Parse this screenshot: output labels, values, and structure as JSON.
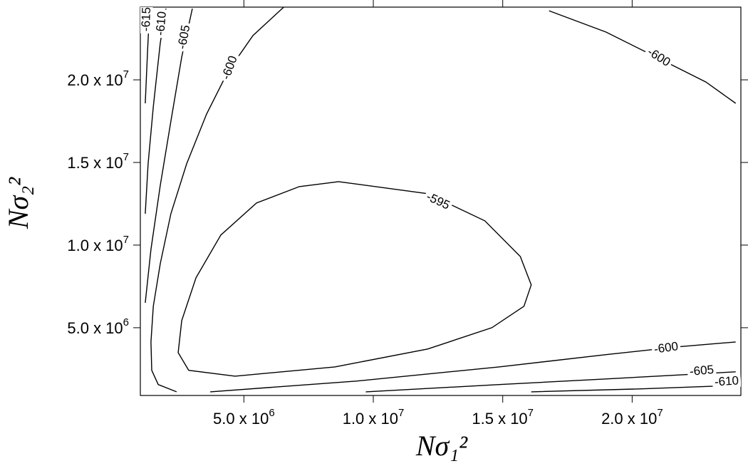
{
  "chart_data": {
    "type": "contour",
    "xlabel": "Nσ₁²",
    "ylabel": "Nσ₂²",
    "xlim": [
      1000000,
      24200000
    ],
    "ylim": [
      900000,
      24400000
    ],
    "xticks": [
      {
        "value": 5000000,
        "label": "5.0 x 10",
        "exponent": "6"
      },
      {
        "value": 10000000,
        "label": "1.0 x 10",
        "exponent": "7"
      },
      {
        "value": 15000000,
        "label": "1.5 x 10",
        "exponent": "7"
      },
      {
        "value": 20000000,
        "label": "2.0 x 10",
        "exponent": "7"
      }
    ],
    "yticks": [
      {
        "value": 5000000,
        "label": "5.0 x 10",
        "exponent": "6"
      },
      {
        "value": 10000000,
        "label": "1.0 x 10",
        "exponent": "7"
      },
      {
        "value": 15000000,
        "label": "1.5 x 10",
        "exponent": "7"
      },
      {
        "value": 20000000,
        "label": "2.0 x 10",
        "exponent": "7"
      }
    ],
    "color": "#000000",
    "contours": [
      {
        "level": -595,
        "x": [
          8660000.0,
          12100000.0,
          14310000.0,
          15680000.0,
          16100000.0,
          15820000.0,
          14580000.0,
          12100000.0,
          8520000.0,
          4660000.0,
          2870000.0,
          2460000.0,
          2600000.0,
          3150000.0,
          4110000.0,
          5490000.0,
          7140000.0,
          8660000.0
        ],
        "y": [
          13840000.0,
          13110000.0,
          11470000.0,
          9310000.0,
          7590000.0,
          6300000.0,
          5000000.0,
          3710000.0,
          2630000.0,
          2070000.0,
          2420000.0,
          3490000.0,
          5430000.0,
          8020000.0,
          10610000.0,
          12550000.0,
          13540000.0,
          13840000.0
        ]
      },
      {
        "level": -600,
        "x": [
          6540000.0,
          5350000.0,
          4390000.0,
          3560000.0,
          2790000.0,
          2180000.0,
          1770000.0,
          1500000.0,
          1410000.0,
          1440000.0,
          1690000.0,
          2400000.0
        ],
        "y": [
          24400000.0,
          22680000.0,
          20520000.0,
          17930000.0,
          14920000.0,
          11900000.0,
          8880000.0,
          6300000.0,
          4140000.0,
          2420000.0,
          1560000.0,
          1120000.0
        ]
      },
      {
        "level": -600,
        "x": [
          3700000.0,
          9350000.0,
          14860000.0,
          18990000.0,
          21740000.0,
          24000000.0
        ],
        "y": [
          1120000.0,
          1770000.0,
          2630000.0,
          3370000.0,
          3840000.0,
          4140000.0
        ]
      },
      {
        "level": -600,
        "x": [
          16790000.0,
          18990000.0,
          21190000.0,
          22850000.0,
          24000000.0
        ],
        "y": [
          24180000.0,
          22890000.0,
          21170000.0,
          19870000.0,
          18580000.0
        ]
      },
      {
        "level": -605,
        "x": [
          3010000.0,
          2600000.0,
          2180000.0,
          1770000.0,
          1410000.0,
          1190000.0
        ],
        "y": [
          24310000.0,
          21380000.0,
          17500000.0,
          13620000.0,
          9740000.0,
          6510000.0
        ]
      },
      {
        "level": -605,
        "x": [
          9710000.0,
          14860000.0,
          18990000.0,
          22020000.0,
          24000000.0
        ],
        "y": [
          1120000.0,
          1560000.0,
          1900000.0,
          2160000.0,
          2330000.0
        ]
      },
      {
        "level": -610,
        "x": [
          1990000.0,
          1770000.0,
          1500000.0,
          1300000.0,
          1190000.0
        ],
        "y": [
          24310000.0,
          22240000.0,
          18370000.0,
          14920000.0,
          11900000.0
        ]
      },
      {
        "level": -610,
        "x": [
          16100000.0,
          20370000.0,
          24000000.0
        ],
        "y": [
          1120000.0,
          1300000.0,
          1510000.0
        ]
      },
      {
        "level": -615,
        "x": [
          1360000.0,
          1280000.0,
          1190000.0
        ],
        "y": [
          24310000.0,
          21810000.0,
          18580000.0
        ]
      }
    ]
  }
}
